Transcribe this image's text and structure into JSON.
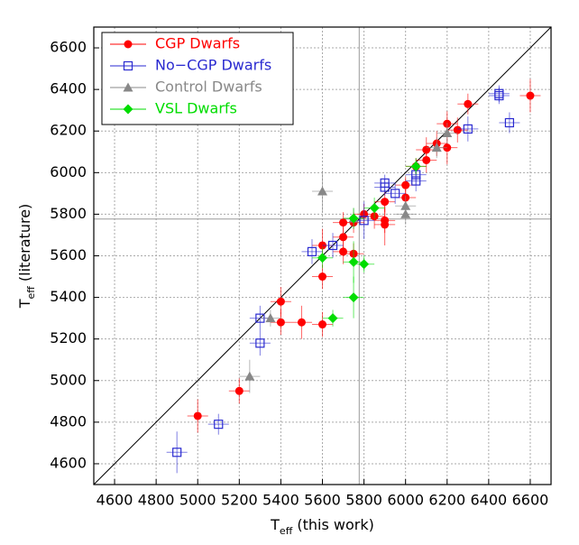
{
  "chart_data": {
    "type": "scatter",
    "xlabel": {
      "main": "T",
      "sub": "eff",
      "rest": " (this work)"
    },
    "ylabel": {
      "main": "T",
      "sub": "eff",
      "rest": " (literature)"
    },
    "xlim": [
      4500,
      6700
    ],
    "ylim": [
      4500,
      6700
    ],
    "xticks": [
      4600,
      4800,
      5000,
      5200,
      5400,
      5600,
      5800,
      6000,
      6200,
      6400,
      6600
    ],
    "yticks": [
      4600,
      4800,
      5000,
      5200,
      5400,
      5600,
      5800,
      6000,
      6200,
      6400,
      6600
    ],
    "grid": true,
    "diagonal": true,
    "reference_lines": [
      5777
    ],
    "legend": "upper left",
    "series": [
      {
        "name": "CGP Dwarfs",
        "color": "#ff0000",
        "marker": "circle",
        "x": [
          6600,
          6300,
          6250,
          6200,
          6200,
          6150,
          6100,
          6100,
          6050,
          6000,
          6000,
          5900,
          5900,
          5900,
          5850,
          5800,
          5750,
          5750,
          5700,
          5700,
          5700,
          5600,
          5600,
          5600,
          5500,
          5400,
          5400,
          5200,
          5000
        ],
        "values": [
          6370,
          6330,
          6205,
          6235,
          6120,
          6140,
          6110,
          6060,
          6030,
          5940,
          5880,
          5860,
          5770,
          5750,
          5790,
          5800,
          5760,
          5610,
          5690,
          5760,
          5620,
          5650,
          5500,
          5270,
          5280,
          5380,
          5280,
          4950,
          4830
        ],
        "xerr": [
          50,
          50,
          50,
          50,
          50,
          50,
          50,
          50,
          50,
          50,
          50,
          50,
          50,
          50,
          50,
          50,
          50,
          50,
          50,
          50,
          50,
          50,
          50,
          50,
          50,
          50,
          50,
          50,
          50
        ],
        "yerr": [
          80,
          50,
          60,
          60,
          80,
          60,
          60,
          60,
          40,
          40,
          40,
          50,
          60,
          100,
          60,
          50,
          50,
          50,
          60,
          50,
          60,
          80,
          60,
          60,
          80,
          70,
          60,
          60,
          80
        ]
      },
      {
        "name": "No−CGP Dwarfs",
        "color": "#2a2ad0",
        "marker": "square",
        "x": [
          6450,
          6450,
          6500,
          6300,
          6050,
          6050,
          5950,
          5900,
          5900,
          5800,
          5650,
          5550,
          5300,
          5300,
          5100,
          4900
        ],
        "values": [
          6370,
          6380,
          6240,
          6210,
          5990,
          5960,
          5900,
          5950,
          5930,
          5770,
          5650,
          5620,
          5300,
          5180,
          4790,
          4655
        ],
        "xerr": [
          50,
          50,
          50,
          50,
          50,
          50,
          50,
          50,
          50,
          50,
          50,
          50,
          50,
          50,
          50,
          50
        ],
        "yerr": [
          40,
          40,
          50,
          60,
          50,
          50,
          50,
          40,
          40,
          90,
          60,
          60,
          60,
          60,
          50,
          100
        ]
      },
      {
        "name": "Control Dwarfs",
        "color": "#888888",
        "marker": "triangle",
        "x": [
          6200,
          6150,
          6000,
          6000,
          5600,
          5350,
          5250,
          5750
        ],
        "values": [
          6190,
          6120,
          5840,
          5800,
          5910,
          5300,
          5020,
          5780
        ],
        "xerr": [
          50,
          50,
          50,
          50,
          50,
          50,
          50,
          50
        ],
        "yerr": [
          50,
          50,
          50,
          50,
          100,
          40,
          80,
          50
        ]
      },
      {
        "name": "VSL Dwarfs",
        "color": "#00dd00",
        "marker": "diamond",
        "x": [
          6050,
          5850,
          5750,
          5750,
          5750,
          5800,
          5600,
          5650
        ],
        "values": [
          6030,
          5830,
          5780,
          5570,
          5400,
          5560,
          5590,
          5300
        ],
        "xerr": [
          50,
          50,
          50,
          50,
          50,
          50,
          50,
          50
        ],
        "yerr": [
          40,
          50,
          50,
          100,
          100,
          40,
          50,
          40
        ]
      }
    ]
  }
}
